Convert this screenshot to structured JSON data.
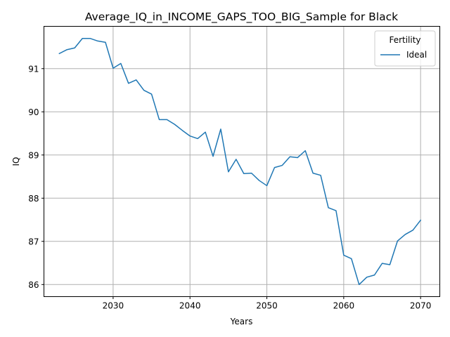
{
  "chart_data": {
    "type": "line",
    "title": "Average_IQ_in_INCOME_GAPS_TOO_BIG_Sample for Black",
    "xlabel": "Years",
    "ylabel": "IQ",
    "xlim": [
      2021,
      2072.5
    ],
    "ylim": [
      85.72,
      91.98
    ],
    "xticks": [
      2030,
      2040,
      2050,
      2060,
      2070
    ],
    "yticks": [
      86,
      87,
      88,
      89,
      90,
      91
    ],
    "grid": true,
    "legend": {
      "title": "Fertility",
      "placement": "top-right"
    },
    "series": [
      {
        "name": "Ideal",
        "color": "#1f77b4",
        "x": [
          2023,
          2024,
          2025,
          2026,
          2027,
          2028,
          2029,
          2030,
          2031,
          2032,
          2033,
          2034,
          2035,
          2036,
          2037,
          2038,
          2039,
          2040,
          2041,
          2042,
          2043,
          2044,
          2045,
          2046,
          2047,
          2048,
          2049,
          2050,
          2051,
          2052,
          2053,
          2054,
          2055,
          2056,
          2057,
          2058,
          2059,
          2060,
          2061,
          2062,
          2063,
          2064,
          2065,
          2066,
          2067,
          2068,
          2069,
          2070
        ],
        "values": [
          91.35,
          91.44,
          91.48,
          91.7,
          91.7,
          91.64,
          91.61,
          91.01,
          91.12,
          90.66,
          90.74,
          90.5,
          90.41,
          89.82,
          89.82,
          89.71,
          89.57,
          89.44,
          89.38,
          89.53,
          88.97,
          89.6,
          88.61,
          88.9,
          88.57,
          88.58,
          88.41,
          88.29,
          88.71,
          88.76,
          88.96,
          88.94,
          89.1,
          88.58,
          88.53,
          87.78,
          87.71,
          86.68,
          86.6,
          86.0,
          86.17,
          86.22,
          86.49,
          86.46,
          87.01,
          87.16,
          87.26,
          87.49
        ]
      }
    ]
  }
}
